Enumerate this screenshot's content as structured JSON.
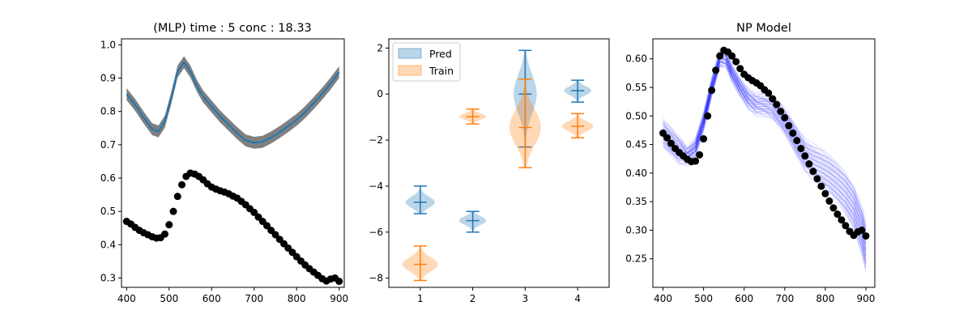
{
  "chart_data": [
    {
      "type": "line",
      "title": "(MLP) time : 5 conc : 18.33",
      "xlim": [
        388,
        912
      ],
      "ylim": [
        0.272,
        1.018
      ],
      "x_ticks": [
        "400",
        "500",
        "600",
        "700",
        "800",
        "900"
      ],
      "y_ticks": [
        "0.3",
        "0.4",
        "0.5",
        "0.6",
        "0.7",
        "0.8",
        "0.9",
        "1.0"
      ],
      "grid": false,
      "colors": {
        "prediction": "#1f77b4",
        "band": "#808080",
        "observed": "#000000"
      },
      "prediction": {
        "x": [
          400,
          420,
          440,
          460,
          475,
          490,
          505,
          520,
          535,
          550,
          565,
          580,
          600,
          620,
          640,
          660,
          680,
          700,
          720,
          740,
          760,
          780,
          800,
          820,
          840,
          860,
          880,
          900
        ],
        "y": [
          0.852,
          0.82,
          0.782,
          0.747,
          0.74,
          0.77,
          0.84,
          0.92,
          0.948,
          0.92,
          0.878,
          0.845,
          0.815,
          0.785,
          0.76,
          0.735,
          0.713,
          0.706,
          0.709,
          0.722,
          0.738,
          0.756,
          0.775,
          0.798,
          0.825,
          0.853,
          0.884,
          0.918
        ],
        "band_halfwidth": 0.018
      },
      "observed": {
        "x": [
          400,
          410,
          420,
          430,
          440,
          450,
          460,
          470,
          480,
          490,
          500,
          510,
          520,
          530,
          540,
          550,
          560,
          570,
          580,
          590,
          600,
          610,
          620,
          630,
          640,
          650,
          660,
          670,
          680,
          690,
          700,
          710,
          720,
          730,
          740,
          750,
          760,
          770,
          780,
          790,
          800,
          810,
          820,
          830,
          840,
          850,
          860,
          870,
          880,
          890,
          900
        ],
        "y": [
          0.47,
          0.462,
          0.452,
          0.443,
          0.436,
          0.43,
          0.424,
          0.42,
          0.421,
          0.432,
          0.46,
          0.5,
          0.545,
          0.58,
          0.605,
          0.615,
          0.612,
          0.605,
          0.595,
          0.583,
          0.573,
          0.567,
          0.562,
          0.558,
          0.553,
          0.546,
          0.54,
          0.53,
          0.52,
          0.508,
          0.497,
          0.483,
          0.47,
          0.457,
          0.443,
          0.43,
          0.416,
          0.403,
          0.39,
          0.377,
          0.364,
          0.351,
          0.339,
          0.328,
          0.318,
          0.308,
          0.298,
          0.291,
          0.297,
          0.3,
          0.29
        ]
      }
    },
    {
      "type": "violin",
      "xlim": [
        0.4,
        4.6
      ],
      "ylim": [
        -8.4,
        2.4
      ],
      "x_ticks": [
        "1",
        "2",
        "3",
        "4"
      ],
      "y_ticks": [
        "2",
        "0",
        "−2",
        "−4",
        "−6",
        "−8"
      ],
      "legend": {
        "position": "top-left",
        "entries": [
          "Pred",
          "Train"
        ]
      },
      "colors": {
        "pred": "#1f77b4",
        "train": "#ff7f0e"
      },
      "series": [
        {
          "name": "Pred",
          "violins": [
            {
              "pos": 1,
              "min": -5.2,
              "max": -4.0,
              "mean": -4.7,
              "width": 0.28
            },
            {
              "pos": 2,
              "min": -6.0,
              "max": -5.1,
              "mean": -5.5,
              "width": 0.26
            },
            {
              "pos": 3,
              "min": -2.3,
              "max": 1.9,
              "mean": 0.0,
              "width": 0.22
            },
            {
              "pos": 4,
              "min": -0.35,
              "max": 0.6,
              "mean": 0.15,
              "width": 0.26
            }
          ]
        },
        {
          "name": "Train",
          "violins": [
            {
              "pos": 1,
              "min": -8.1,
              "max": -6.6,
              "mean": -7.4,
              "width": 0.34
            },
            {
              "pos": 2,
              "min": -1.3,
              "max": -0.65,
              "mean": -0.98,
              "width": 0.26
            },
            {
              "pos": 3,
              "min": -3.2,
              "max": 0.65,
              "mean": -1.45,
              "width": 0.3
            },
            {
              "pos": 4,
              "min": -1.9,
              "max": -0.85,
              "mean": -1.4,
              "width": 0.3
            }
          ]
        }
      ]
    },
    {
      "type": "line",
      "title": "NP Model",
      "xlim": [
        375,
        922
      ],
      "ylim": [
        0.2,
        0.635
      ],
      "x_ticks": [
        "400",
        "500",
        "600",
        "700",
        "800",
        "900"
      ],
      "y_ticks": [
        "0.25",
        "0.30",
        "0.35",
        "0.40",
        "0.45",
        "0.50",
        "0.55",
        "0.60"
      ],
      "grid": false,
      "colors": {
        "samples": "#0000ff",
        "observed": "#000000"
      },
      "sample_mean": {
        "x": [
          400,
          420,
          440,
          460,
          480,
          500,
          520,
          540,
          555,
          570,
          590,
          610,
          630,
          650,
          670,
          690,
          710,
          730,
          750,
          770,
          790,
          810,
          830,
          850,
          870,
          890,
          900
        ],
        "y": [
          0.47,
          0.455,
          0.44,
          0.43,
          0.445,
          0.49,
          0.55,
          0.6,
          0.6,
          0.575,
          0.55,
          0.53,
          0.52,
          0.52,
          0.515,
          0.5,
          0.48,
          0.455,
          0.432,
          0.42,
          0.41,
          0.398,
          0.383,
          0.365,
          0.34,
          0.3,
          0.27
        ]
      },
      "observed": {
        "x": [
          400,
          410,
          420,
          430,
          440,
          450,
          460,
          470,
          480,
          490,
          500,
          510,
          520,
          530,
          540,
          550,
          560,
          570,
          580,
          590,
          600,
          610,
          620,
          630,
          640,
          650,
          660,
          670,
          680,
          690,
          700,
          710,
          720,
          730,
          740,
          750,
          760,
          770,
          780,
          790,
          800,
          810,
          820,
          830,
          840,
          850,
          860,
          870,
          880,
          890,
          900
        ],
        "y": [
          0.47,
          0.462,
          0.452,
          0.443,
          0.436,
          0.43,
          0.424,
          0.42,
          0.421,
          0.432,
          0.46,
          0.5,
          0.545,
          0.58,
          0.605,
          0.615,
          0.612,
          0.605,
          0.595,
          0.583,
          0.573,
          0.567,
          0.562,
          0.558,
          0.553,
          0.546,
          0.54,
          0.53,
          0.52,
          0.508,
          0.497,
          0.483,
          0.47,
          0.457,
          0.443,
          0.43,
          0.416,
          0.403,
          0.39,
          0.377,
          0.364,
          0.351,
          0.339,
          0.328,
          0.318,
          0.308,
          0.298,
          0.291,
          0.297,
          0.3,
          0.29
        ]
      }
    }
  ]
}
